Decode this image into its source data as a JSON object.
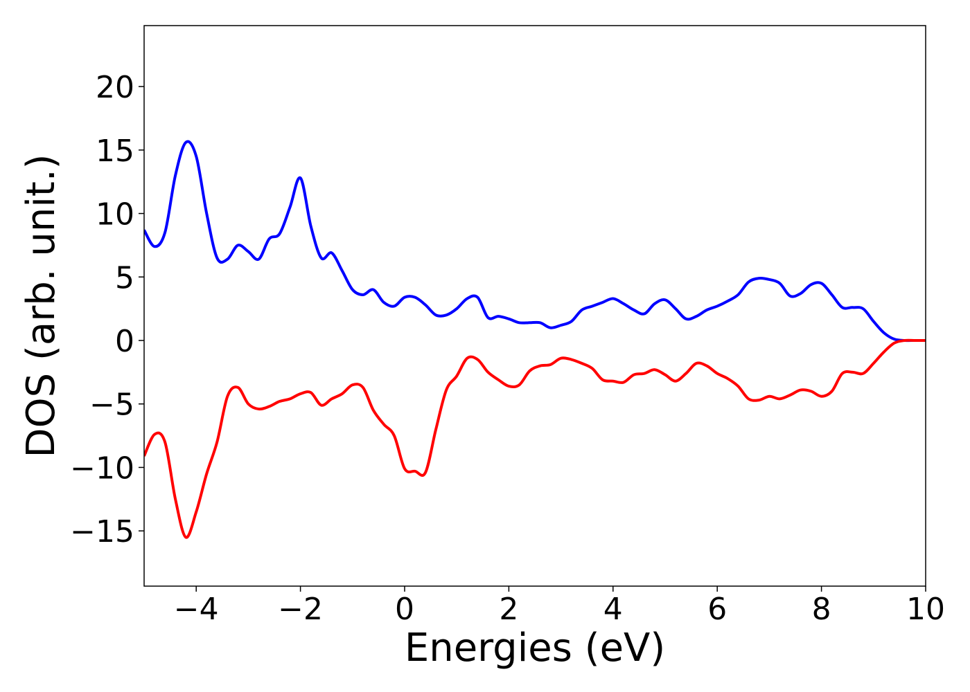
{
  "chart_data": {
    "type": "line",
    "x_label": "Energies (eV)",
    "y_label": "DOS (arb. unit.)",
    "x": [
      -5.0,
      -4.8,
      -4.6,
      -4.4,
      -4.2,
      -4.0,
      -3.8,
      -3.6,
      -3.4,
      -3.2,
      -3.0,
      -2.8,
      -2.6,
      -2.4,
      -2.2,
      -2.0,
      -1.8,
      -1.6,
      -1.4,
      -1.2,
      -1.0,
      -0.8,
      -0.6,
      -0.4,
      -0.2,
      0.0,
      0.2,
      0.4,
      0.6,
      0.8,
      1.0,
      1.2,
      1.4,
      1.6,
      1.8,
      2.0,
      2.2,
      2.4,
      2.6,
      2.8,
      3.0,
      3.2,
      3.4,
      3.6,
      3.8,
      4.0,
      4.2,
      4.4,
      4.6,
      4.8,
      5.0,
      5.2,
      5.4,
      5.6,
      5.8,
      6.0,
      6.2,
      6.4,
      6.6,
      6.8,
      7.0,
      7.2,
      7.4,
      7.6,
      7.8,
      8.0,
      8.2,
      8.4,
      8.6,
      8.8,
      9.0,
      9.2,
      9.4,
      9.6,
      9.8,
      10.0
    ],
    "series": [
      {
        "color": "#0000ff",
        "values": [
          8.7,
          7.4,
          8.5,
          13.0,
          15.6,
          14.5,
          10.0,
          6.5,
          6.4,
          7.5,
          7.0,
          6.4,
          8.0,
          8.4,
          10.5,
          12.8,
          9.0,
          6.5,
          6.9,
          5.5,
          4.0,
          3.6,
          4.0,
          3.0,
          2.7,
          3.4,
          3.4,
          2.8,
          2.0,
          2.0,
          2.5,
          3.3,
          3.4,
          1.8,
          1.9,
          1.7,
          1.4,
          1.4,
          1.4,
          1.0,
          1.2,
          1.5,
          2.4,
          2.7,
          3.0,
          3.3,
          2.9,
          2.4,
          2.1,
          2.9,
          3.2,
          2.5,
          1.7,
          1.9,
          2.4,
          2.7,
          3.1,
          3.6,
          4.6,
          4.9,
          4.8,
          4.5,
          3.5,
          3.7,
          4.4,
          4.5,
          3.6,
          2.6,
          2.6,
          2.5,
          1.5,
          0.6,
          0.1,
          0,
          0,
          0
        ]
      },
      {
        "color": "#ff0000",
        "values": [
          -9.1,
          -7.4,
          -8.0,
          -12.5,
          -15.5,
          -13.5,
          -10.5,
          -8.0,
          -4.4,
          -3.7,
          -5.0,
          -5.4,
          -5.2,
          -4.8,
          -4.6,
          -4.2,
          -4.1,
          -5.1,
          -4.6,
          -4.2,
          -3.5,
          -3.7,
          -5.5,
          -6.6,
          -7.5,
          -10.1,
          -10.3,
          -10.4,
          -7.0,
          -3.9,
          -2.8,
          -1.4,
          -1.5,
          -2.5,
          -3.1,
          -3.6,
          -3.5,
          -2.4,
          -2.0,
          -1.9,
          -1.4,
          -1.5,
          -1.8,
          -2.2,
          -3.1,
          -3.2,
          -3.3,
          -2.7,
          -2.6,
          -2.3,
          -2.7,
          -3.2,
          -2.6,
          -1.8,
          -2.0,
          -2.6,
          -3.0,
          -3.6,
          -4.6,
          -4.7,
          -4.4,
          -4.6,
          -4.3,
          -3.9,
          -4.0,
          -4.4,
          -4.0,
          -2.6,
          -2.5,
          -2.6,
          -1.8,
          -0.9,
          -0.2,
          0,
          0,
          0
        ]
      }
    ],
    "xlim": [
      -5,
      10
    ],
    "ylim": [
      -19.35,
      24.8
    ],
    "xticks": [
      {
        "value": -4,
        "label": "−4"
      },
      {
        "value": -2,
        "label": "−2"
      },
      0,
      2,
      4,
      6,
      8,
      10
    ],
    "yticks": [
      {
        "value": -15,
        "label": "−15"
      },
      {
        "value": -10,
        "label": "−10"
      },
      {
        "value": -5,
        "label": "−5"
      },
      0,
      5,
      10,
      15,
      20
    ]
  }
}
